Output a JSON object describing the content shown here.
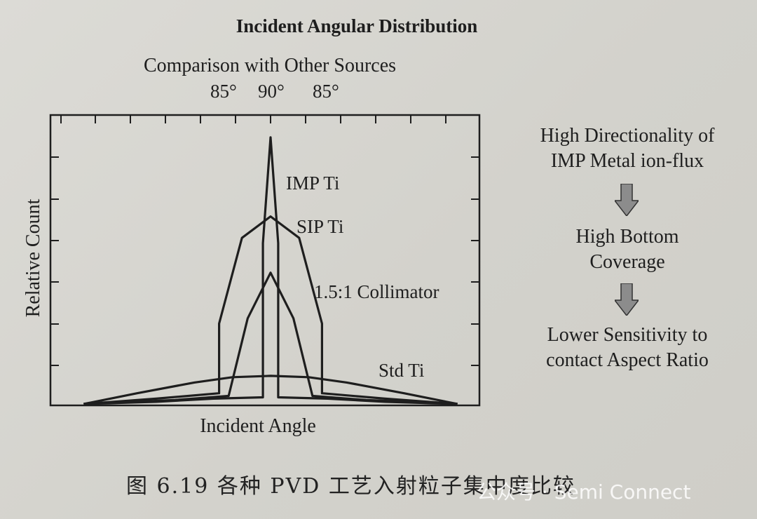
{
  "chart_data": {
    "type": "line",
    "title": "Incident Angular Distribution",
    "subtitle": "Comparison with Other Sources",
    "top_tick_labels": [
      "85°",
      "90°",
      "85°"
    ],
    "xlabel": "Incident Angle",
    "ylabel": "Relative Count",
    "xlim": [
      -1,
      1
    ],
    "ylim": [
      0,
      1
    ],
    "series": [
      {
        "name": "IMP Ti",
        "x": [
          -0.98,
          -0.6,
          -0.3,
          -0.04,
          -0.04,
          0.0,
          0.04,
          0.04,
          0.3,
          0.6,
          0.98
        ],
        "y": [
          0.0,
          0.008,
          0.02,
          0.025,
          0.6,
          0.995,
          0.6,
          0.025,
          0.02,
          0.008,
          0.0
        ]
      },
      {
        "name": "SIP Ti",
        "x": [
          -0.98,
          -0.6,
          -0.27,
          -0.27,
          -0.15,
          0.0,
          0.15,
          0.27,
          0.27,
          0.6,
          0.98
        ],
        "y": [
          0.0,
          0.02,
          0.04,
          0.3,
          0.62,
          0.7,
          0.62,
          0.3,
          0.04,
          0.02,
          0.0
        ]
      },
      {
        "name": "1.5:1 Collimator",
        "x": [
          -0.98,
          -0.5,
          -0.22,
          -0.12,
          0.0,
          0.12,
          0.22,
          0.5,
          0.98
        ],
        "y": [
          0.0,
          0.015,
          0.03,
          0.32,
          0.49,
          0.32,
          0.03,
          0.015,
          0.0
        ]
      },
      {
        "name": "Std Ti",
        "x": [
          -0.98,
          -0.7,
          -0.4,
          -0.2,
          0.0,
          0.2,
          0.4,
          0.7,
          0.98
        ],
        "y": [
          0.0,
          0.04,
          0.08,
          0.1,
          0.105,
          0.1,
          0.08,
          0.04,
          0.0
        ]
      }
    ]
  },
  "flow": {
    "step1": [
      "High Directionality of",
      "IMP Metal ion-flux"
    ],
    "step2": [
      "High Bottom",
      "Coverage"
    ],
    "step3": [
      "Lower Sensitivity to",
      "contact Aspect Ratio"
    ]
  },
  "caption": "图 6.19  各种 PVD 工艺入射粒子集中度比较",
  "watermark": "公众号 · Semi Connect",
  "colors": {
    "ink": "#1e1e1e",
    "arrow_fill": "#8c8c8c"
  }
}
